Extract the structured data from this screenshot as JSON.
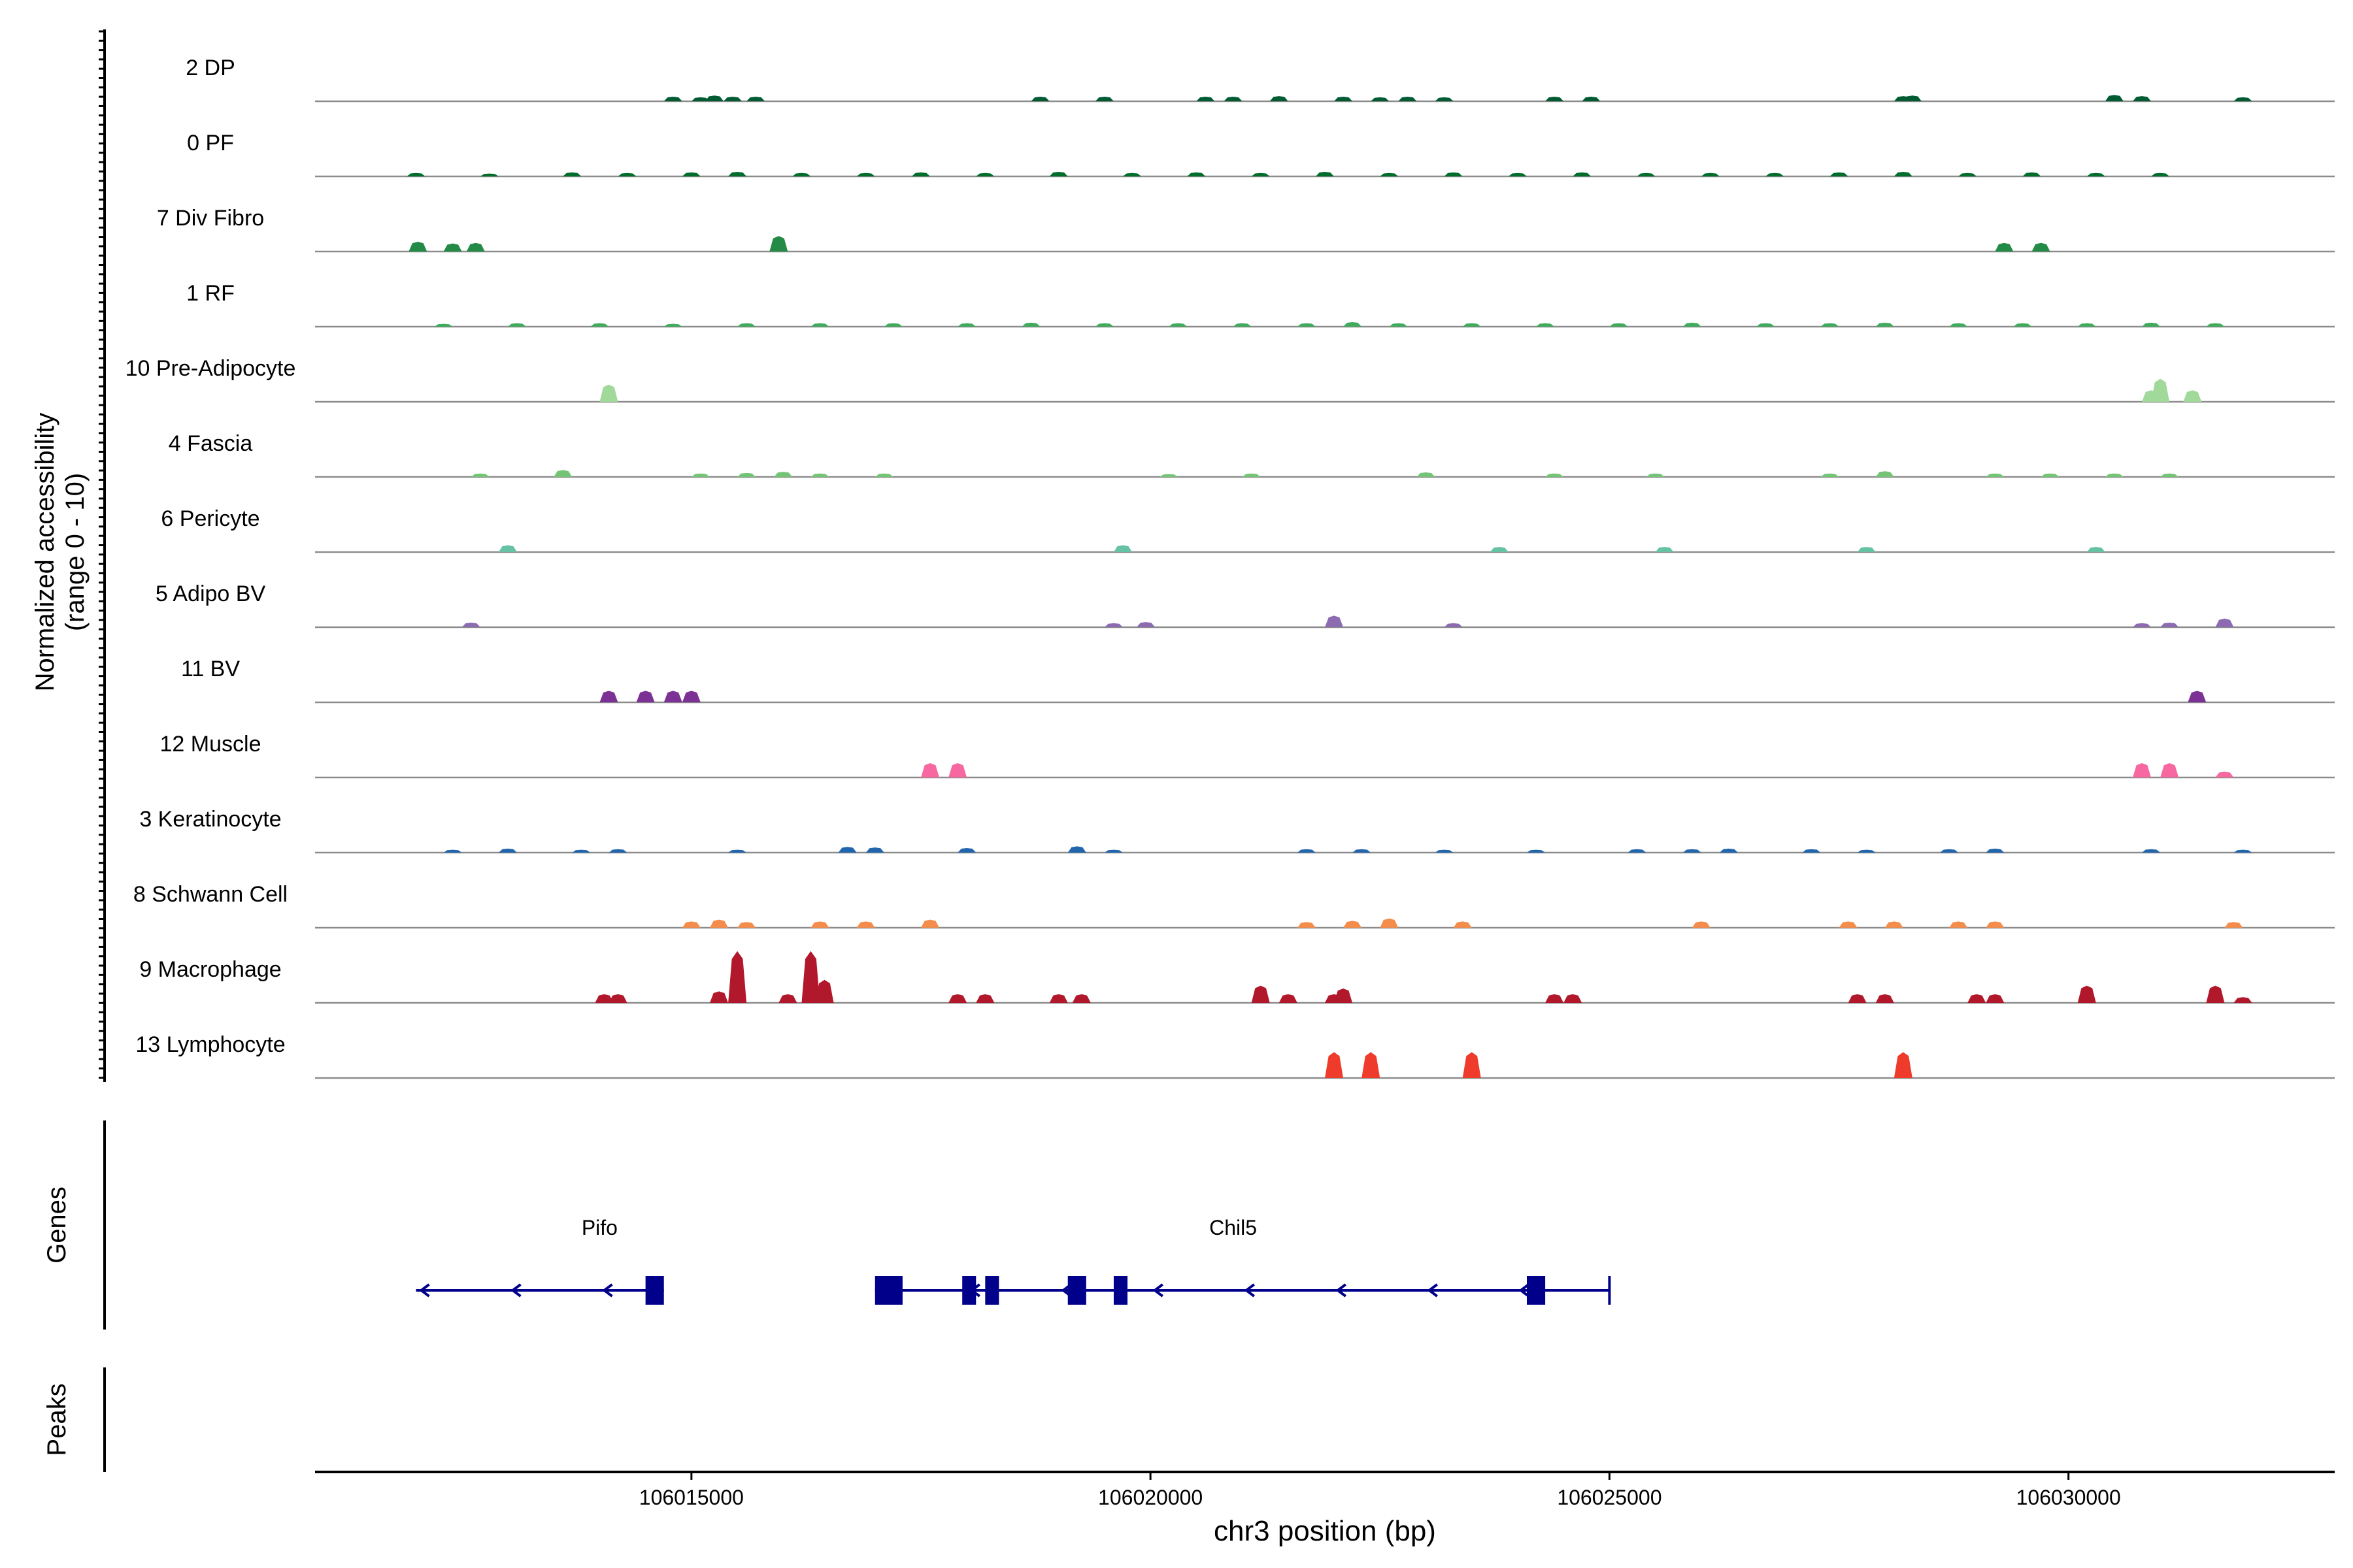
{
  "chart_data": {
    "type": "area",
    "title": "",
    "xlabel": "chr3 position (bp)",
    "ylabel_line1": "Normalized accessibility",
    "ylabel_line2": "(range 0 - 10)",
    "genes_label": "Genes",
    "peaks_label": "Peaks",
    "x_ticks": [
      "106015000",
      "106020000",
      "106025000",
      "106030000"
    ],
    "xlim": [
      106010900,
      106032900
    ],
    "ylim": [
      0,
      10
    ],
    "grid": false,
    "legend": "none",
    "tracks": [
      {
        "name": "2 DP",
        "color": "#005a32",
        "peaks": [
          [
            106014800,
            0.8
          ],
          [
            106015100,
            0.7
          ],
          [
            106015250,
            1
          ],
          [
            106015450,
            0.8
          ],
          [
            106015700,
            0.8
          ],
          [
            106018800,
            0.8
          ],
          [
            106019500,
            0.8
          ],
          [
            106020600,
            0.8
          ],
          [
            106020900,
            0.8
          ],
          [
            106021400,
            0.9
          ],
          [
            106022100,
            0.8
          ],
          [
            106022500,
            0.7
          ],
          [
            106022800,
            0.8
          ],
          [
            106023200,
            0.7
          ],
          [
            106024400,
            0.8
          ],
          [
            106024800,
            0.8
          ],
          [
            106028200,
            0.9
          ],
          [
            106028300,
            1
          ],
          [
            106030500,
            1.1
          ],
          [
            106030800,
            0.9
          ],
          [
            106031900,
            0.7
          ]
        ]
      },
      {
        "name": "0 PF",
        "color": "#006d2c",
        "peaks": [
          [
            106012000,
            0.6
          ],
          [
            106012800,
            0.5
          ],
          [
            106013700,
            0.7
          ],
          [
            106014300,
            0.6
          ],
          [
            106015000,
            0.7
          ],
          [
            106015500,
            0.8
          ],
          [
            106016200,
            0.6
          ],
          [
            106016900,
            0.6
          ],
          [
            106017500,
            0.7
          ],
          [
            106018200,
            0.6
          ],
          [
            106019000,
            0.8
          ],
          [
            106019800,
            0.6
          ],
          [
            106020500,
            0.7
          ],
          [
            106021200,
            0.6
          ],
          [
            106021900,
            0.8
          ],
          [
            106022600,
            0.6
          ],
          [
            106023300,
            0.7
          ],
          [
            106024000,
            0.6
          ],
          [
            106024700,
            0.7
          ],
          [
            106025400,
            0.6
          ],
          [
            106026100,
            0.6
          ],
          [
            106026800,
            0.6
          ],
          [
            106027500,
            0.7
          ],
          [
            106028200,
            0.8
          ],
          [
            106028900,
            0.6
          ],
          [
            106029600,
            0.7
          ],
          [
            106030300,
            0.6
          ],
          [
            106031000,
            0.6
          ]
        ]
      },
      {
        "name": "7 Div Fibro",
        "color": "#238b45",
        "peaks": [
          [
            106012020,
            1.7
          ],
          [
            106012400,
            1.4
          ],
          [
            106012650,
            1.5
          ],
          [
            106015950,
            2.7
          ],
          [
            106029300,
            1.5
          ],
          [
            106029700,
            1.5
          ]
        ]
      },
      {
        "name": "1 RF",
        "color": "#41ab5d",
        "peaks": [
          [
            106012300,
            0.5
          ],
          [
            106013100,
            0.6
          ],
          [
            106014000,
            0.6
          ],
          [
            106014800,
            0.5
          ],
          [
            106015600,
            0.6
          ],
          [
            106016400,
            0.6
          ],
          [
            106017200,
            0.6
          ],
          [
            106018000,
            0.6
          ],
          [
            106018700,
            0.7
          ],
          [
            106019500,
            0.6
          ],
          [
            106020300,
            0.6
          ],
          [
            106021000,
            0.6
          ],
          [
            106021700,
            0.6
          ],
          [
            106022200,
            0.8
          ],
          [
            106022700,
            0.6
          ],
          [
            106023500,
            0.6
          ],
          [
            106024300,
            0.6
          ],
          [
            106025100,
            0.6
          ],
          [
            106025900,
            0.7
          ],
          [
            106026700,
            0.6
          ],
          [
            106027400,
            0.6
          ],
          [
            106028000,
            0.7
          ],
          [
            106028800,
            0.6
          ],
          [
            106029500,
            0.6
          ],
          [
            106030200,
            0.6
          ],
          [
            106030900,
            0.7
          ],
          [
            106031600,
            0.6
          ]
        ]
      },
      {
        "name": "10 Pre-Adipocyte",
        "color": "#a1d99b",
        "peaks": [
          [
            106014100,
            3.0
          ],
          [
            106030900,
            2.0
          ],
          [
            106031000,
            4.0
          ],
          [
            106031350,
            2.0
          ]
        ]
      },
      {
        "name": "4 Fascia",
        "color": "#74c476",
        "peaks": [
          [
            106012700,
            0.6
          ],
          [
            106013600,
            1.2
          ],
          [
            106015100,
            0.6
          ],
          [
            106015600,
            0.7
          ],
          [
            106016000,
            0.9
          ],
          [
            106016400,
            0.6
          ],
          [
            106017100,
            0.6
          ],
          [
            106020200,
            0.5
          ],
          [
            106021100,
            0.6
          ],
          [
            106023000,
            0.8
          ],
          [
            106024400,
            0.6
          ],
          [
            106025500,
            0.6
          ],
          [
            106027400,
            0.6
          ],
          [
            106028000,
            1.0
          ],
          [
            106029200,
            0.6
          ],
          [
            106029800,
            0.6
          ],
          [
            106030500,
            0.6
          ],
          [
            106031100,
            0.6
          ]
        ]
      },
      {
        "name": "6 Pericyte",
        "color": "#66c2a4",
        "peaks": [
          [
            106013000,
            1.2
          ],
          [
            106019700,
            1.2
          ],
          [
            106023800,
            0.9
          ],
          [
            106025600,
            0.9
          ],
          [
            106027800,
            0.9
          ],
          [
            106030300,
            0.9
          ]
        ]
      },
      {
        "name": "5 Adipo BV",
        "color": "#8c6bb1",
        "peaks": [
          [
            106012600,
            0.8
          ],
          [
            106019600,
            0.7
          ],
          [
            106019950,
            0.9
          ],
          [
            106022000,
            2.0
          ],
          [
            106023300,
            0.7
          ],
          [
            106030800,
            0.7
          ],
          [
            106031100,
            0.8
          ],
          [
            106031700,
            1.5
          ]
        ]
      },
      {
        "name": "11 BV",
        "color": "#7b3294",
        "peaks": [
          [
            106014100,
            2.0
          ],
          [
            106014500,
            2.0
          ],
          [
            106014800,
            2.0
          ],
          [
            106015000,
            2.0
          ],
          [
            106031400,
            2.0
          ]
        ]
      },
      {
        "name": "12 Muscle",
        "color": "#f768a1",
        "peaks": [
          [
            106017600,
            2.5
          ],
          [
            106017900,
            2.5
          ],
          [
            106030800,
            2.5
          ],
          [
            106031100,
            2.5
          ],
          [
            106031700,
            1.0
          ]
        ]
      },
      {
        "name": "3 Keratinocyte",
        "color": "#2166ac",
        "peaks": [
          [
            106012400,
            0.5
          ],
          [
            106013000,
            0.7
          ],
          [
            106013800,
            0.5
          ],
          [
            106014200,
            0.6
          ],
          [
            106015500,
            0.5
          ],
          [
            106016700,
            1.0
          ],
          [
            106017000,
            0.9
          ],
          [
            106018000,
            0.8
          ],
          [
            106019200,
            1.1
          ],
          [
            106019600,
            0.5
          ],
          [
            106021700,
            0.6
          ],
          [
            106022300,
            0.6
          ],
          [
            106023200,
            0.5
          ],
          [
            106024200,
            0.5
          ],
          [
            106025300,
            0.6
          ],
          [
            106025900,
            0.6
          ],
          [
            106026300,
            0.7
          ],
          [
            106027200,
            0.6
          ],
          [
            106027800,
            0.5
          ],
          [
            106028700,
            0.6
          ],
          [
            106029200,
            0.7
          ],
          [
            106030900,
            0.6
          ],
          [
            106031900,
            0.5
          ]
        ]
      },
      {
        "name": "8 Schwann Cell",
        "color": "#f48d4b",
        "peaks": [
          [
            106015000,
            1.1
          ],
          [
            106015300,
            1.4
          ],
          [
            106015600,
            1.0
          ],
          [
            106016400,
            1.1
          ],
          [
            106016900,
            1.1
          ],
          [
            106017600,
            1.4
          ],
          [
            106021700,
            1.0
          ],
          [
            106022200,
            1.2
          ],
          [
            106022600,
            1.6
          ],
          [
            106023400,
            1.1
          ],
          [
            106026000,
            1.1
          ],
          [
            106027600,
            1.1
          ],
          [
            106028100,
            1.1
          ],
          [
            106028800,
            1.1
          ],
          [
            106029200,
            1.1
          ],
          [
            106031800,
            1.0
          ]
        ]
      },
      {
        "name": "9 Macrophage",
        "color": "#b2182b",
        "peaks": [
          [
            106014050,
            1.5
          ],
          [
            106014200,
            1.5
          ],
          [
            106015300,
            2.0
          ],
          [
            106015500,
            9.0
          ],
          [
            106016050,
            1.5
          ],
          [
            106016300,
            9.0
          ],
          [
            106016450,
            4.0
          ],
          [
            106017900,
            1.5
          ],
          [
            106018200,
            1.5
          ],
          [
            106019000,
            1.5
          ],
          [
            106019250,
            1.5
          ],
          [
            106021200,
            3.0
          ],
          [
            106021500,
            1.5
          ],
          [
            106022000,
            1.5
          ],
          [
            106022100,
            2.5
          ],
          [
            106024400,
            1.5
          ],
          [
            106024600,
            1.5
          ],
          [
            106027700,
            1.5
          ],
          [
            106028000,
            1.5
          ],
          [
            106029000,
            1.5
          ],
          [
            106029200,
            1.5
          ],
          [
            106030200,
            3.0
          ],
          [
            106031600,
            3.0
          ],
          [
            106031900,
            1.0
          ]
        ]
      },
      {
        "name": "13 Lymphocyte",
        "color": "#ef3b2c",
        "peaks": [
          [
            106022000,
            4.5
          ],
          [
            106022400,
            4.5
          ],
          [
            106023500,
            4.5
          ],
          [
            106028200,
            4.5
          ]
        ]
      }
    ],
    "genes": [
      {
        "name": "Pifo",
        "start": 106012000,
        "end": 106014700,
        "strand": "-",
        "exons": [
          [
            106014500,
            106014700
          ]
        ]
      },
      {
        "name": "Chil5",
        "start": 106017000,
        "end": 106025000,
        "strand": "-",
        "exons": [
          [
            106017000,
            106017300
          ],
          [
            106017950,
            106018100
          ],
          [
            106018200,
            106018350
          ],
          [
            106019100,
            106019300
          ],
          [
            106019600,
            106019750
          ],
          [
            106024100,
            106024300
          ]
        ]
      }
    ]
  }
}
